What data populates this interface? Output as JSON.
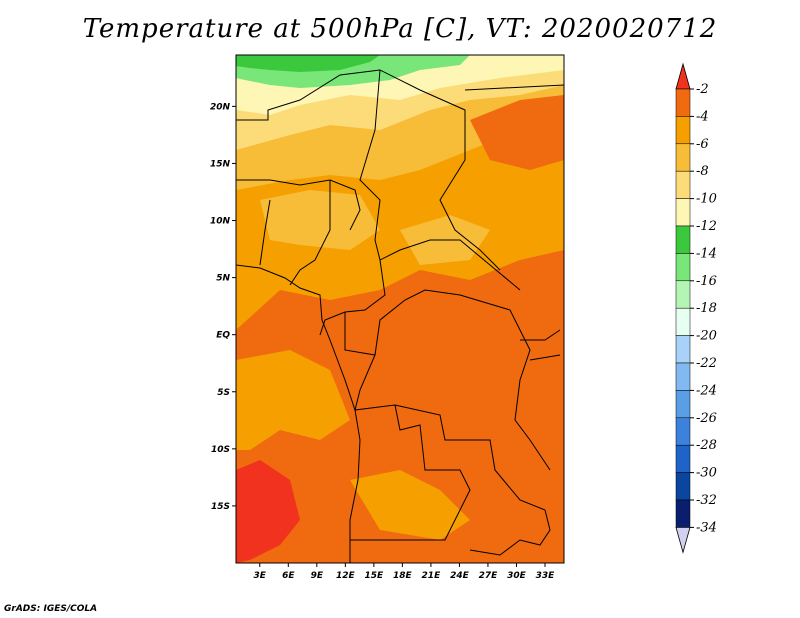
{
  "title": "Temperature at 500hPa [C], VT: 2020020712",
  "credit": "GrADS: IGES/COLA",
  "chart_data": {
    "type": "heatmap",
    "title": "Temperature at 500hPa [C], VT: 2020020712",
    "variable": "Temperature at 500hPa",
    "units": "C",
    "valid_time": "2020020712",
    "x_axis": {
      "ticks": [
        3,
        6,
        9,
        12,
        15,
        18,
        21,
        24,
        27,
        30,
        33
      ],
      "tick_labels": [
        "3E",
        "6E",
        "9E",
        "12E",
        "15E",
        "18E",
        "21E",
        "24E",
        "27E",
        "30E",
        "33E"
      ],
      "range": [
        0.5,
        35
      ]
    },
    "y_axis": {
      "ticks": [
        20,
        15,
        10,
        5,
        0,
        -5,
        -10,
        -15
      ],
      "tick_labels": [
        "20N",
        "15N",
        "10N",
        "5N",
        "EQ",
        "5S",
        "10S",
        "15S"
      ],
      "range": [
        -20,
        24.5
      ]
    },
    "colorbar": {
      "labels": [
        "-2",
        "-4",
        "-6",
        "-8",
        "-10",
        "-12",
        "-14",
        "-16",
        "-18",
        "-20",
        "-22",
        "-24",
        "-26",
        "-28",
        "-30",
        "-32",
        "-34"
      ],
      "levels": [
        -2,
        -4,
        -6,
        -8,
        -10,
        -12,
        -14,
        -16,
        -18,
        -20,
        -22,
        -24,
        -26,
        -28,
        -30,
        -32,
        -34
      ],
      "colors": [
        "#f0321e",
        "#f06a0f",
        "#f5a000",
        "#f8bd38",
        "#fcdc78",
        "#fef6b4",
        "#3cc83c",
        "#78e678",
        "#b4f5b4",
        "#e6fff0",
        "#a8d2f8",
        "#82b9f0",
        "#5a9ee6",
        "#3c82dc",
        "#1e64c8",
        "#0a46a0",
        "#0a1e6e",
        "#d2d2f0"
      ]
    },
    "approx_field": [
      {
        "region": "far north (~22-24N, 2-17E)",
        "range_c": [
          -14,
          -12
        ]
      },
      {
        "region": "north Sahara (~17-22N)",
        "range_c": [
          -10,
          -6
        ]
      },
      {
        "region": "Sahel (~5-15N)",
        "range_c": [
          -8,
          -4
        ]
      },
      {
        "region": "Congo basin / equator",
        "range_c": [
          -4,
          -2
        ]
      },
      {
        "region": "southwest Atlantic (~10-20S, 0-5E)",
        "range_c": [
          -2,
          0
        ]
      }
    ]
  }
}
